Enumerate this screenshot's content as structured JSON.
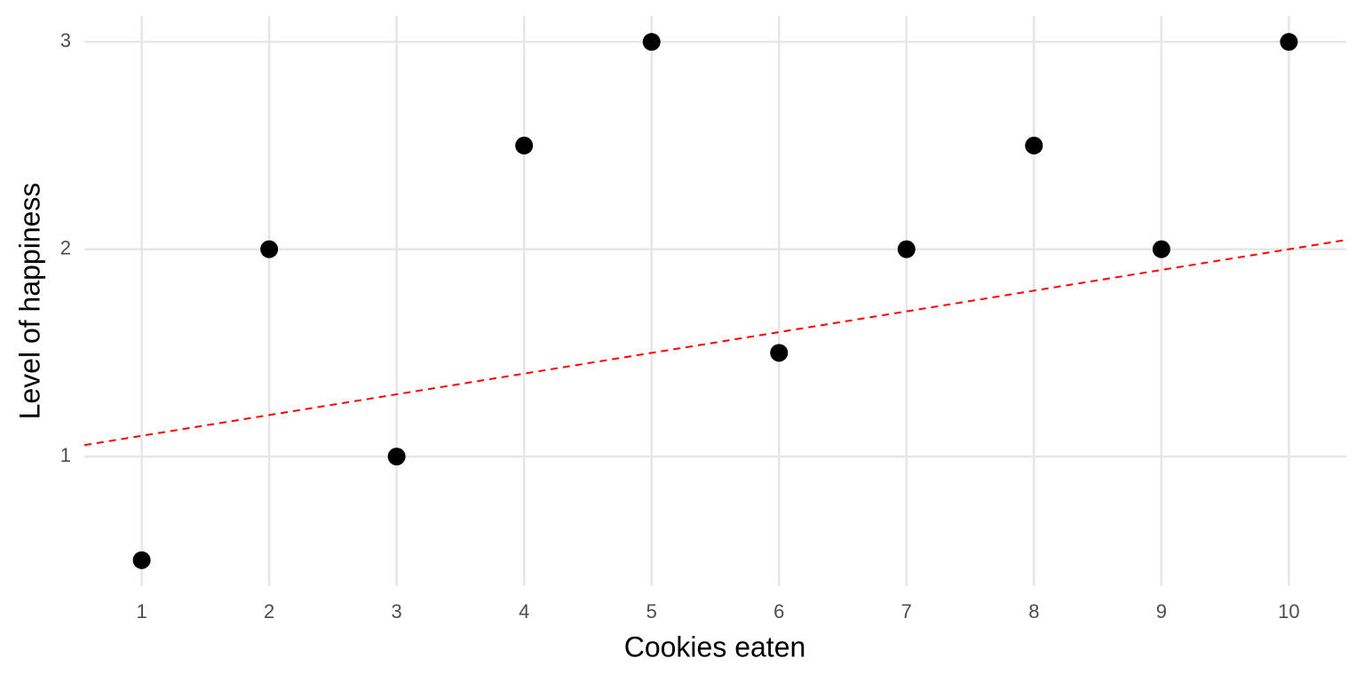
{
  "chart_data": {
    "type": "scatter",
    "x_label": "Cookies eaten",
    "y_label": "Level of happiness",
    "x": [
      1,
      2,
      3,
      4,
      5,
      6,
      7,
      8,
      9,
      10
    ],
    "y": [
      0.5,
      2,
      1,
      2.5,
      3,
      1.5,
      2,
      2.5,
      2,
      3
    ],
    "color": "#000000",
    "xlim": [
      0.55,
      10.45
    ],
    "ylim": [
      0.375,
      3.125
    ],
    "xticks": [
      1,
      2,
      3,
      4,
      5,
      6,
      7,
      8,
      9,
      10
    ],
    "yticks": [
      1,
      2,
      3
    ],
    "grid": true,
    "trend_line": {
      "intercept": 1,
      "slope": 0.1,
      "color": "#ff0000",
      "dashed": true
    }
  }
}
